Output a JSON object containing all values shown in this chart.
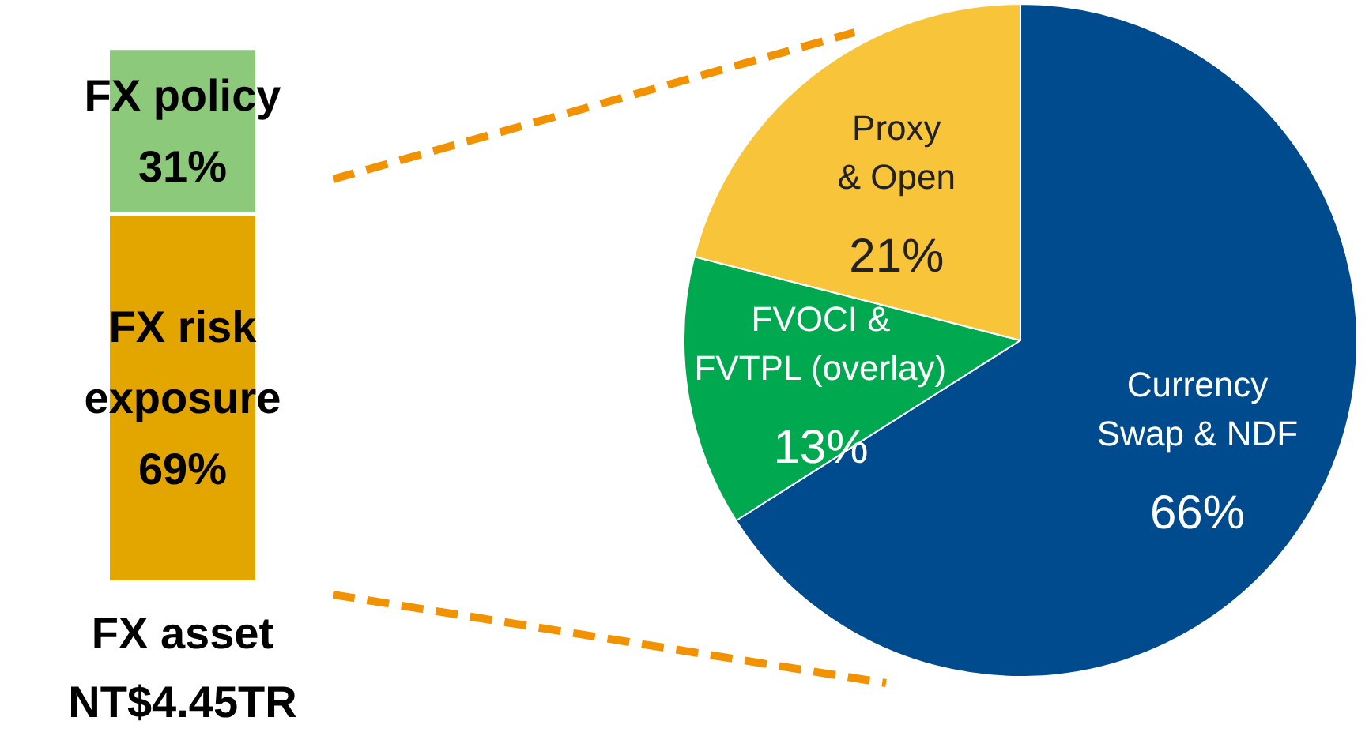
{
  "chart_data": [
    {
      "type": "bar",
      "stacked": true,
      "categories": [
        null
      ],
      "xlabel": "FX asset\nNT$4.45TR",
      "series": [
        {
          "name": "FX risk\nexposure",
          "color": "#e3a600",
          "values": [
            69
          ],
          "value_labels": [
            "69%"
          ]
        },
        {
          "name": "FX policy",
          "color": "#8cc97a",
          "values": [
            31
          ],
          "value_labels": [
            "31%"
          ]
        }
      ]
    },
    {
      "type": "pie",
      "categories": [
        "Currency\nSwap & NDF",
        "FVOCI &\nFVTPL (overlay)",
        "Proxy\n& Open"
      ],
      "values": [
        66,
        13,
        21
      ],
      "colors": [
        "#004b8d",
        "#00a94f",
        "#f8c43a"
      ],
      "value_labels": [
        "66%",
        "13%",
        "21%"
      ]
    }
  ]
}
